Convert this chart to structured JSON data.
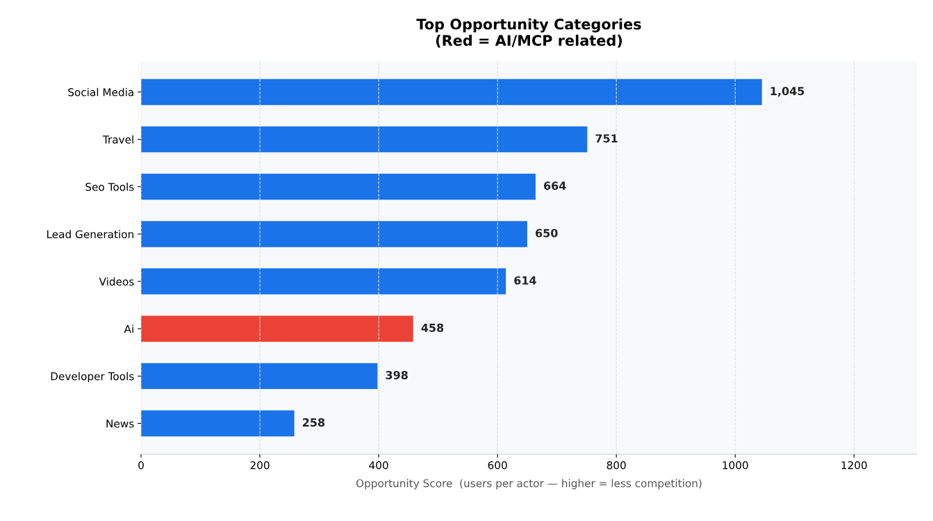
{
  "chart_data": {
    "type": "bar",
    "orientation": "horizontal",
    "title": "Top Opportunity Categories\n(Red = AI/MCP related)",
    "xlabel": "Opportunity Score  (users per actor — higher = less competition)",
    "categories": [
      "Social Media",
      "Travel",
      "Seo Tools",
      "Lead Generation",
      "Videos",
      "Ai",
      "Developer Tools",
      "News"
    ],
    "values": [
      1045,
      751,
      664,
      650,
      614,
      458,
      398,
      258
    ],
    "value_labels": [
      "1,045",
      "751",
      "664",
      "650",
      "614",
      "458",
      "398",
      "258"
    ],
    "colors": [
      "#1a73e8",
      "#1a73e8",
      "#1a73e8",
      "#1a73e8",
      "#1a73e8",
      "#ea4335",
      "#1a73e8",
      "#1a73e8"
    ],
    "xlim": [
      0,
      1306
    ],
    "xticks": [
      0,
      200,
      400,
      600,
      800,
      1000,
      1200
    ],
    "grid": "x",
    "legend": false
  }
}
